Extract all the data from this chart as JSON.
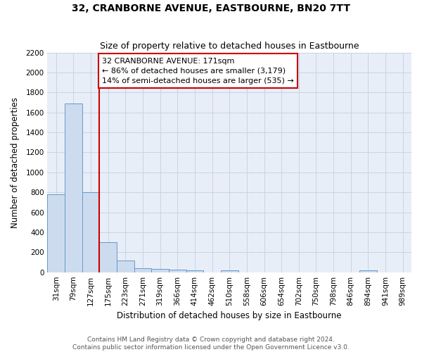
{
  "title": "32, CRANBORNE AVENUE, EASTBOURNE, BN20 7TT",
  "subtitle": "Size of property relative to detached houses in Eastbourne",
  "xlabel": "Distribution of detached houses by size in Eastbourne",
  "ylabel": "Number of detached properties",
  "categories": [
    "31sqm",
    "79sqm",
    "127sqm",
    "175sqm",
    "223sqm",
    "271sqm",
    "319sqm",
    "366sqm",
    "414sqm",
    "462sqm",
    "510sqm",
    "558sqm",
    "606sqm",
    "654sqm",
    "702sqm",
    "750sqm",
    "798sqm",
    "846sqm",
    "894sqm",
    "941sqm",
    "989sqm"
  ],
  "values": [
    780,
    1690,
    800,
    300,
    115,
    40,
    30,
    25,
    20,
    0,
    20,
    0,
    0,
    0,
    0,
    0,
    0,
    0,
    20,
    0,
    0
  ],
  "bar_color": "#ccdcee",
  "bar_edge_color": "#6699cc",
  "annotation_box_title": "32 CRANBORNE AVENUE: 171sqm",
  "annotation_line1": "← 86% of detached houses are smaller (3,179)",
  "annotation_line2": "14% of semi-detached houses are larger (535) →",
  "red_line_x": 2.5,
  "ylim": [
    0,
    2200
  ],
  "yticks": [
    0,
    200,
    400,
    600,
    800,
    1000,
    1200,
    1400,
    1600,
    1800,
    2000,
    2200
  ],
  "footer_line1": "Contains HM Land Registry data © Crown copyright and database right 2024.",
  "footer_line2": "Contains public sector information licensed under the Open Government Licence v3.0.",
  "background_color": "#ffffff",
  "plot_bg_color": "#e8eef8",
  "grid_color": "#c8d4e4",
  "annotation_box_color": "#ffffff",
  "annotation_box_edge_color": "#cc0000",
  "red_line_color": "#cc0000",
  "title_fontsize": 10,
  "subtitle_fontsize": 9,
  "axis_label_fontsize": 8.5,
  "tick_fontsize": 7.5,
  "annotation_title_fontsize": 8.5,
  "annotation_text_fontsize": 8,
  "footer_fontsize": 6.5
}
